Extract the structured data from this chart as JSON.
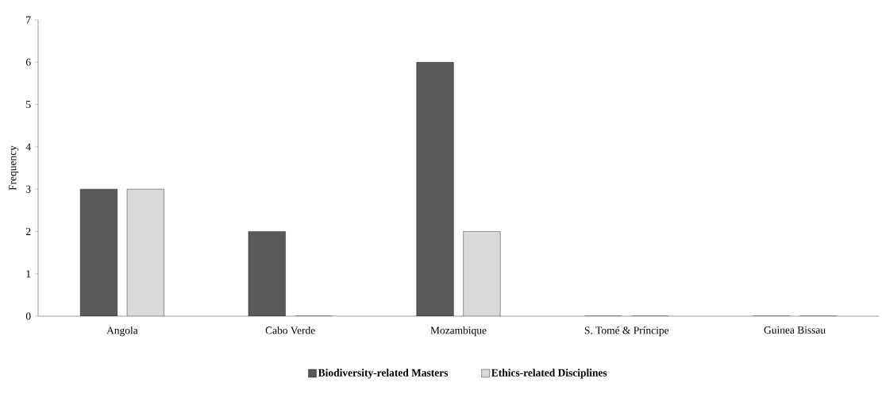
{
  "chart_data": {
    "type": "bar",
    "ylabel": "Frequency",
    "categories": [
      "Angola",
      "Cabo Verde",
      "Mozambique",
      "S. Tomé & Príncipe",
      "Guinea Bissau"
    ],
    "series": [
      {
        "name": "Biodiversity-related Masters",
        "color": "#595959",
        "values": [
          3,
          2,
          6,
          0,
          0
        ]
      },
      {
        "name": "Ethics-related Disciplines",
        "color": "#d9d9d9",
        "values": [
          3,
          0,
          2,
          0,
          0
        ]
      }
    ],
    "ylim": [
      0,
      7
    ],
    "yticks": [
      0,
      1,
      2,
      3,
      4,
      5,
      6,
      7
    ],
    "legend": "bottom"
  }
}
